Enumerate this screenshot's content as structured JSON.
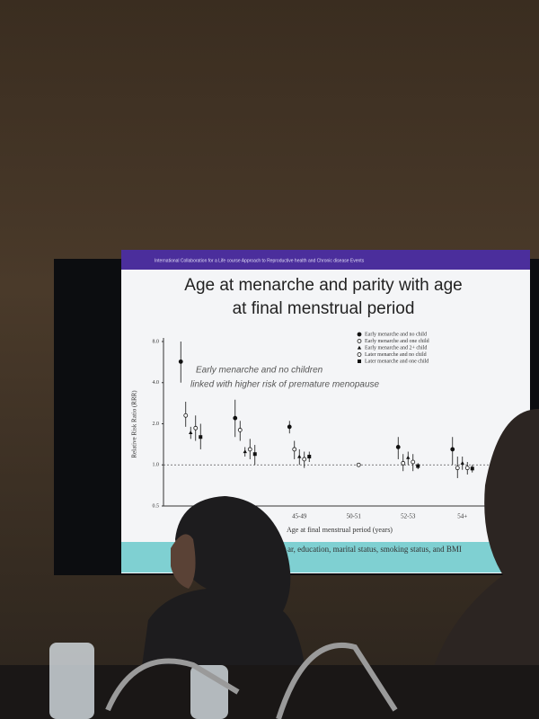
{
  "chart_data": {
    "type": "errorbar",
    "header": "International Collaboration for a Life course Approach to Reproductive health and Chronic disease Events",
    "title": "Age at menarche and parity with age at final menstrual period",
    "annotation": [
      "Early menarche and no children",
      "linked with higher risk of premature menopause"
    ],
    "y_label": "Relative Risk Ratio (RRR)",
    "x_label": "Age at final menstrual period (years)",
    "footnote": "ar, education, marital status, smoking status, and BMI",
    "categories": [
      null,
      null,
      "45-49",
      "50-51",
      "52-53",
      "54+"
    ],
    "log_scale": true,
    "ylim": [
      0.5,
      8
    ],
    "yticks": [
      {
        "value": 0.5,
        "label": "0.5"
      },
      {
        "value": 1,
        "label": "1.0"
      },
      {
        "value": 2,
        "label": "2.0"
      },
      {
        "value": 4,
        "label": "4.0"
      },
      {
        "value": 8,
        "label": "8.0"
      }
    ],
    "reference_line": 1,
    "legend": "upper right",
    "series": [
      {
        "name": "Early menarche and no child",
        "color": "#111111",
        "marker": "filled-circle",
        "values": [
          5.7,
          2.2,
          1.9,
          null,
          1.35,
          1.3
        ],
        "lower": [
          4.0,
          1.6,
          1.7,
          null,
          1.1,
          1.0
        ],
        "upper": [
          8.0,
          3.0,
          2.1,
          null,
          1.6,
          1.6
        ]
      },
      {
        "name": "Early menarche and one child",
        "color": "#111111",
        "marker": "open-circle",
        "values": [
          2.3,
          1.8,
          1.3,
          null,
          1.03,
          0.95
        ],
        "lower": [
          1.9,
          1.5,
          1.1,
          null,
          0.9,
          0.8
        ],
        "upper": [
          2.9,
          2.1,
          1.5,
          null,
          1.2,
          1.15
        ]
      },
      {
        "name": "Early menarche and 2+ child",
        "color": "#111111",
        "marker": "filled-triangle",
        "values": [
          1.72,
          1.25,
          1.15,
          null,
          1.13,
          1.03
        ],
        "lower": [
          1.55,
          1.15,
          1.0,
          null,
          1.0,
          0.92
        ],
        "upper": [
          1.9,
          1.35,
          1.3,
          null,
          1.25,
          1.15
        ]
      },
      {
        "name": "Later menarche and no child",
        "color": "#111111",
        "marker": "open-circle",
        "values": [
          1.86,
          1.3,
          1.1,
          1,
          1.05,
          0.95
        ],
        "lower": [
          1.5,
          1.1,
          0.95,
          null,
          0.9,
          0.85
        ],
        "upper": [
          2.3,
          1.55,
          1.25,
          null,
          1.2,
          1.05
        ]
      },
      {
        "name": "Later menarche and one child",
        "color": "#111111",
        "marker": "filled-square",
        "values": [
          1.6,
          1.2,
          1.15,
          null,
          0.98,
          0.94
        ],
        "lower": [
          1.3,
          1.0,
          1.05,
          null,
          0.93,
          0.88
        ],
        "upper": [
          2.0,
          1.4,
          1.25,
          null,
          1.03,
          1.0
        ]
      }
    ]
  }
}
